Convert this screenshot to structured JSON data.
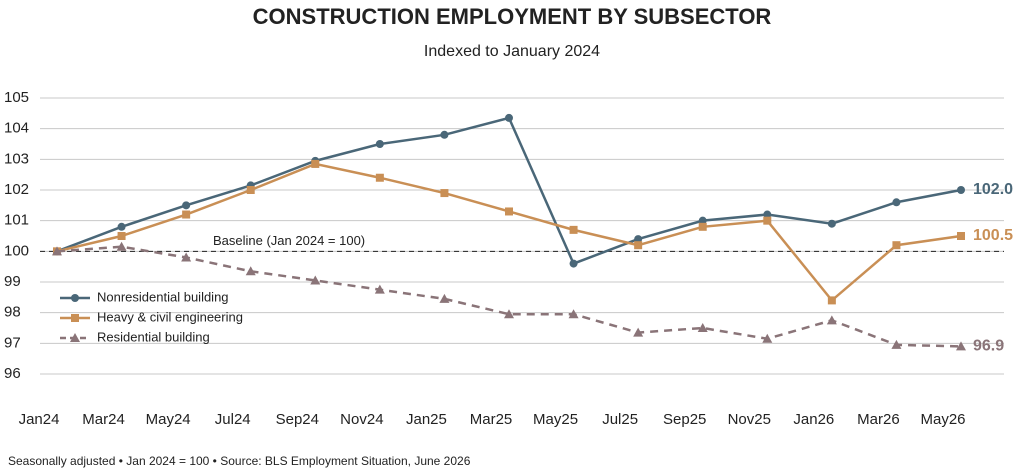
{
  "chart_data": {
    "type": "line",
    "title": "CONSTRUCTION EMPLOYMENT BY SUBSECTOR",
    "subtitle": "Indexed to January 2024",
    "categories": [
      "Jan24",
      "Mar24",
      "May24",
      "Jul24",
      "Sep24",
      "Nov24",
      "Jan25",
      "Mar25",
      "May25",
      "Jul25",
      "Sep25",
      "Nov25",
      "Jan26",
      "Mar26",
      "May26"
    ],
    "series": [
      {
        "name": "Nonresidential building",
        "color": "#4a6778",
        "marker": "circle",
        "dashed": false,
        "values": [
          100,
          100.8,
          101.5,
          102.15,
          102.95,
          103.5,
          103.8,
          104.35,
          99.6,
          100.4,
          101.0,
          101.2,
          100.9,
          101.6,
          102.0
        ],
        "last_label": "102.0"
      },
      {
        "name": "Heavy & civil engineering",
        "color": "#c98f55",
        "marker": "square",
        "dashed": false,
        "values": [
          100,
          100.5,
          101.2,
          102.0,
          102.85,
          102.4,
          101.9,
          101.3,
          100.7,
          100.2,
          100.8,
          101.0,
          98.4,
          100.2,
          100.5
        ],
        "last_label": "100.5"
      },
      {
        "name": "Residential building",
        "color": "#8a7478",
        "marker": "triangle",
        "dashed": true,
        "values": [
          100,
          100.15,
          99.8,
          99.35,
          99.05,
          98.75,
          98.45,
          97.95,
          97.95,
          97.35,
          97.5,
          97.15,
          97.75,
          96.95,
          96.9
        ],
        "last_label": "96.9"
      }
    ],
    "baseline": 100,
    "baseline_label": "Baseline (Jan 2024 = 100)",
    "ylim": [
      96,
      105
    ],
    "yticks": [
      96,
      97,
      98,
      99,
      100,
      101,
      102,
      103,
      104,
      105
    ],
    "grid": true,
    "legend_position": "left",
    "footnote": "Seasonally adjusted  •  Jan 2024 = 100  •  Source: BLS Employment Situation, June 2026"
  }
}
